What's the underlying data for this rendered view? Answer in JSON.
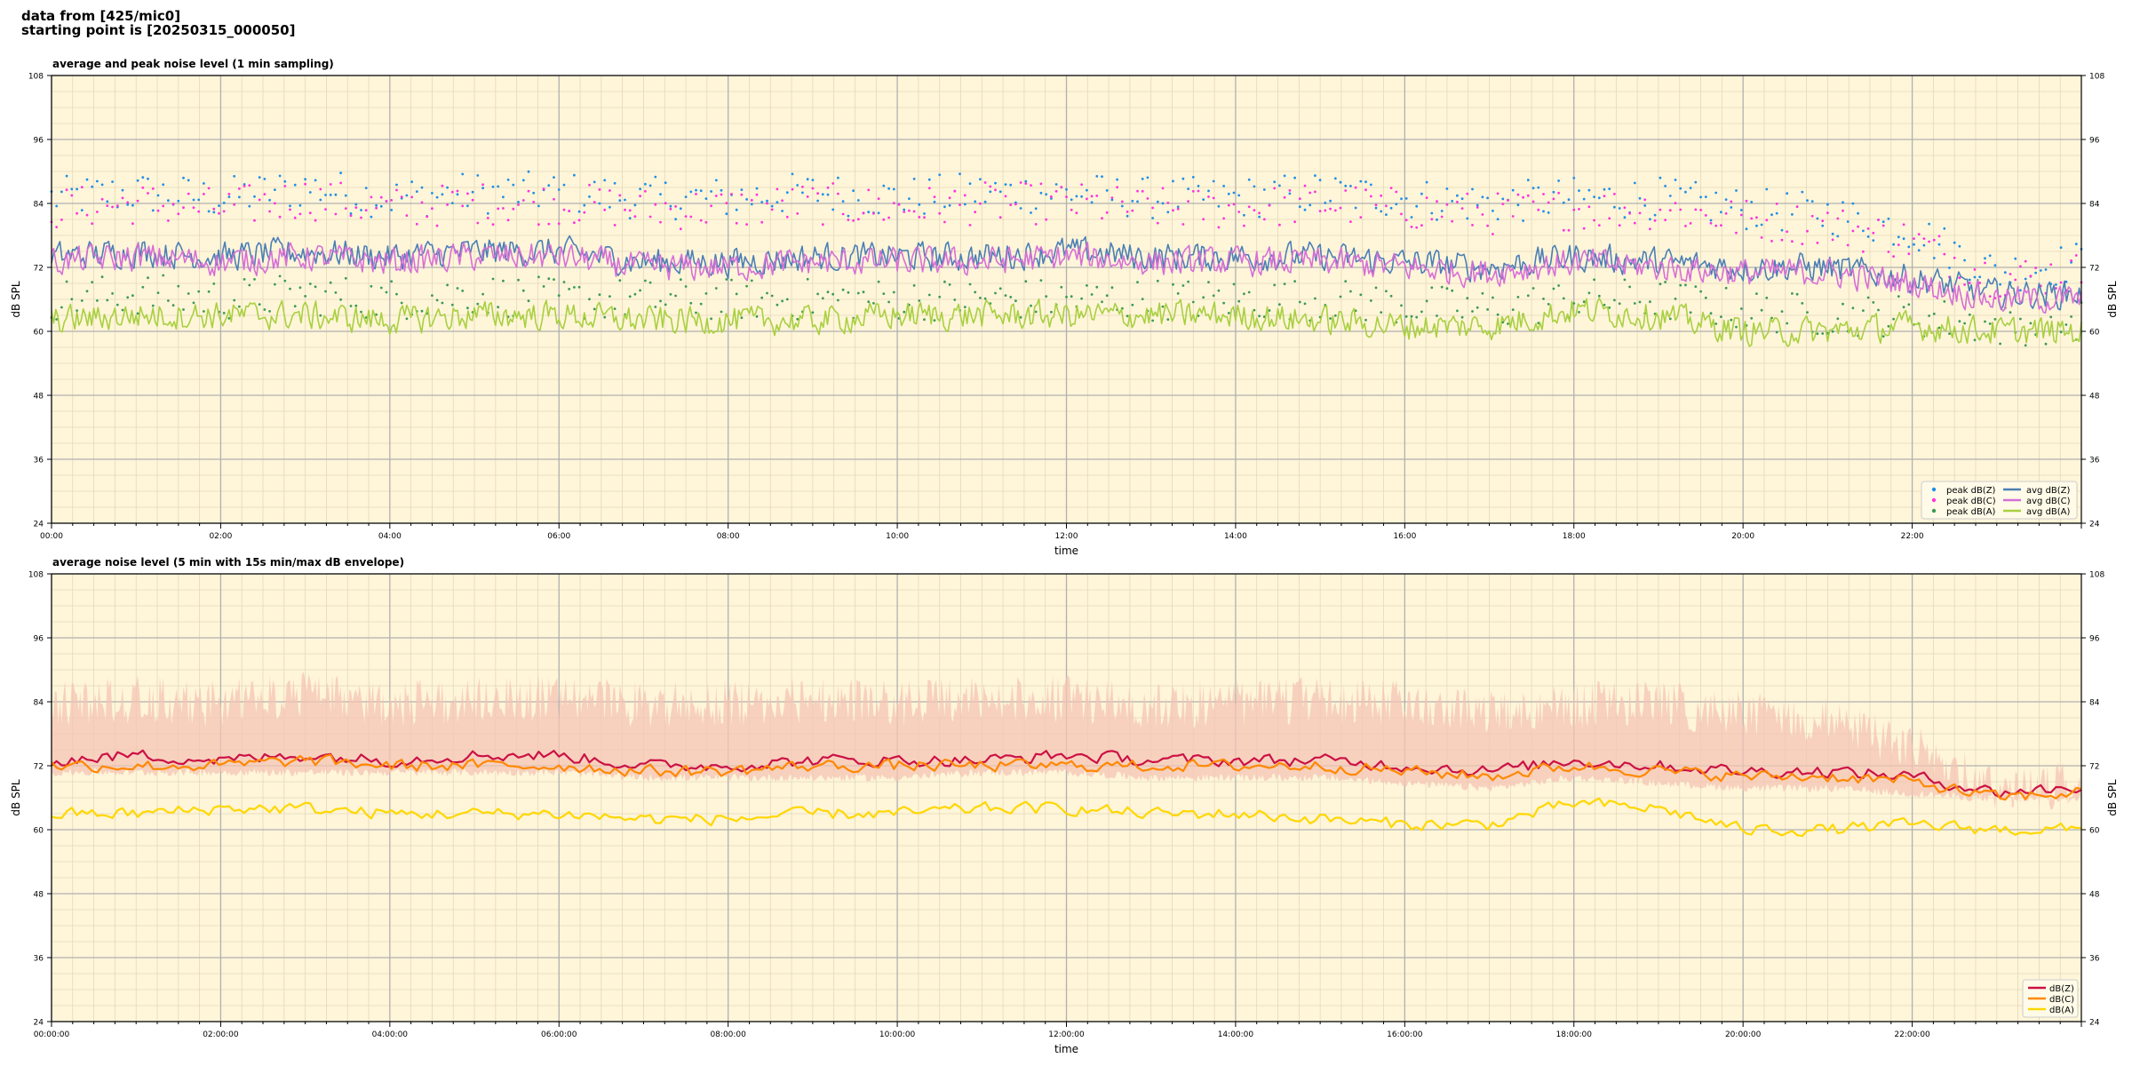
{
  "header": {
    "line1": "data from [425/mic0]",
    "line2": "starting point is [20250315_000050]"
  },
  "colors": {
    "plot_bg": "#fff5d9",
    "grid_major": "#b0b0b0",
    "grid_minor": "#e3d9b8",
    "peak_z": "#1f8fe6",
    "peak_c": "#ff33dd",
    "peak_a": "#3a9a55",
    "avg_z": "#4a7fb5",
    "avg_c": "#d66fd6",
    "avg_a": "#a8d040",
    "lower_z": "#cc1144",
    "lower_c": "#ff8800",
    "lower_a": "#ffd700",
    "envelope": "#f4c4b4"
  },
  "chart_data": [
    {
      "type": "line",
      "title": "average and peak noise level (1 min sampling)",
      "xlabel": "time",
      "ylabel": "dB SPL",
      "ylim": [
        24,
        108
      ],
      "y_ticks": [
        "24",
        "36",
        "48",
        "60",
        "72",
        "84",
        "96",
        "108"
      ],
      "x_range_hours": [
        0,
        24
      ],
      "x_ticks": [
        "00:00",
        "02:00",
        "04:00",
        "06:00",
        "08:00",
        "10:00",
        "12:00",
        "14:00",
        "16:00",
        "18:00",
        "20:00",
        "22:00"
      ],
      "grid": true,
      "legend_position": "lower-right",
      "series": [
        {
          "name": "peak dB(Z)",
          "kind": "points",
          "key": "peak_z",
          "x": [
            0,
            1,
            2,
            3,
            4,
            5,
            6,
            7,
            8,
            9,
            10,
            11,
            12,
            13,
            14,
            15,
            16,
            17,
            18,
            19,
            20,
            21,
            22,
            23,
            24
          ],
          "y": [
            85,
            86,
            85,
            87,
            85,
            86,
            86,
            85,
            85,
            86,
            85,
            86,
            86,
            85,
            85,
            86,
            85,
            84,
            85,
            85,
            83,
            82,
            79,
            71,
            73
          ]
        },
        {
          "name": "peak dB(C)",
          "kind": "points",
          "key": "peak_c",
          "x": [
            0,
            1,
            2,
            3,
            4,
            5,
            6,
            7,
            8,
            9,
            10,
            11,
            12,
            13,
            14,
            15,
            16,
            17,
            18,
            19,
            20,
            21,
            22,
            23,
            24
          ],
          "y": [
            83,
            84,
            83,
            85,
            83,
            84,
            84,
            83,
            83,
            84,
            83,
            84,
            84,
            83,
            83,
            84,
            83,
            82,
            83,
            83,
            81,
            80,
            77,
            70,
            71
          ]
        },
        {
          "name": "peak dB(A)",
          "kind": "points",
          "key": "peak_a",
          "x": [
            0,
            1,
            2,
            3,
            4,
            5,
            6,
            7,
            8,
            9,
            10,
            11,
            12,
            13,
            14,
            15,
            16,
            17,
            18,
            19,
            20,
            21,
            22,
            23,
            24
          ],
          "y": [
            66,
            67,
            66,
            67,
            66,
            67,
            66,
            66,
            66,
            66,
            66,
            66,
            66,
            66,
            66,
            66,
            65,
            64,
            66,
            66,
            64,
            63,
            63,
            61,
            62
          ]
        },
        {
          "name": "avg dB(Z)",
          "kind": "line",
          "key": "avg_z",
          "x": [
            0,
            1,
            2,
            3,
            4,
            5,
            6,
            7,
            8,
            9,
            10,
            11,
            12,
            13,
            14,
            15,
            16,
            17,
            18,
            19,
            20,
            21,
            22,
            23,
            24
          ],
          "y": [
            74,
            75,
            74,
            75,
            74,
            75,
            75,
            73,
            73,
            74,
            74,
            74,
            75,
            74,
            74,
            74,
            73,
            72,
            74,
            73,
            72,
            72,
            70,
            67,
            67
          ]
        },
        {
          "name": "avg dB(C)",
          "kind": "line",
          "key": "avg_c",
          "x": [
            0,
            1,
            2,
            3,
            4,
            5,
            6,
            7,
            8,
            9,
            10,
            11,
            12,
            13,
            14,
            15,
            16,
            17,
            18,
            19,
            20,
            21,
            22,
            23,
            24
          ],
          "y": [
            73,
            74,
            73,
            74,
            73,
            74,
            74,
            72,
            72,
            73,
            73,
            73,
            74,
            73,
            73,
            73,
            72,
            71,
            73,
            72,
            71,
            71,
            69,
            66,
            66
          ]
        },
        {
          "name": "avg dB(A)",
          "kind": "line",
          "key": "avg_a",
          "x": [
            0,
            1,
            2,
            3,
            4,
            5,
            6,
            7,
            8,
            9,
            10,
            11,
            12,
            13,
            14,
            15,
            16,
            17,
            18,
            19,
            20,
            21,
            22,
            23,
            24
          ],
          "y": [
            62,
            63,
            63,
            63,
            62,
            63,
            63,
            62,
            62,
            62,
            63,
            63,
            63,
            63,
            63,
            62,
            61,
            61,
            64,
            63,
            60,
            60,
            61,
            60,
            60
          ]
        }
      ]
    },
    {
      "type": "line",
      "title": "average noise level (5 min with 15s min/max dB envelope)",
      "xlabel": "time",
      "ylabel": "dB SPL",
      "ylim": [
        24,
        108
      ],
      "y_ticks": [
        "24",
        "36",
        "48",
        "60",
        "72",
        "84",
        "96",
        "108"
      ],
      "x_range_hours": [
        0,
        24
      ],
      "x_ticks": [
        "00:00:00",
        "02:00:00",
        "04:00:00",
        "06:00:00",
        "08:00:00",
        "10:00:00",
        "12:00:00",
        "14:00:00",
        "16:00:00",
        "18:00:00",
        "20:00:00",
        "22:00:00"
      ],
      "grid": true,
      "legend_position": "lower-right",
      "envelope": {
        "x": [
          0,
          1,
          2,
          3,
          4,
          5,
          6,
          7,
          8,
          9,
          10,
          11,
          12,
          13,
          14,
          15,
          16,
          17,
          18,
          19,
          20,
          21,
          22,
          23,
          24
        ],
        "max": [
          88,
          89,
          88,
          90,
          88,
          89,
          89,
          88,
          88,
          89,
          88,
          89,
          89,
          88,
          88,
          89,
          88,
          87,
          88,
          88,
          86,
          85,
          80,
          72,
          73
        ],
        "min": [
          70,
          70,
          70,
          70,
          70,
          70,
          70,
          69,
          69,
          69,
          69,
          70,
          70,
          69,
          69,
          69,
          68,
          67,
          69,
          68,
          67,
          67,
          66,
          65,
          65
        ]
      },
      "series": [
        {
          "name": "dB(Z)",
          "kind": "line",
          "key": "lower_z",
          "x": [
            0,
            1,
            2,
            3,
            4,
            5,
            6,
            7,
            8,
            9,
            10,
            11,
            12,
            13,
            14,
            15,
            16,
            17,
            18,
            19,
            20,
            21,
            22,
            23,
            24
          ],
          "y": [
            73,
            74,
            73,
            74,
            73,
            74,
            74,
            72,
            72,
            73,
            73,
            73,
            74,
            73,
            73,
            73,
            72,
            71,
            73,
            72,
            71,
            71,
            70,
            67,
            68
          ]
        },
        {
          "name": "dB(C)",
          "kind": "line",
          "key": "lower_c",
          "x": [
            0,
            1,
            2,
            3,
            4,
            5,
            6,
            7,
            8,
            9,
            10,
            11,
            12,
            13,
            14,
            15,
            16,
            17,
            18,
            19,
            20,
            21,
            22,
            23,
            24
          ],
          "y": [
            72,
            72,
            72,
            73,
            72,
            72,
            72,
            71,
            71,
            72,
            72,
            72,
            72,
            72,
            72,
            72,
            71,
            70,
            72,
            71,
            70,
            70,
            69,
            66,
            67
          ]
        },
        {
          "name": "dB(A)",
          "kind": "line",
          "key": "lower_a",
          "x": [
            0,
            1,
            2,
            3,
            4,
            5,
            6,
            7,
            8,
            9,
            10,
            11,
            12,
            13,
            14,
            15,
            16,
            17,
            18,
            19,
            20,
            21,
            22,
            23,
            24
          ],
          "y": [
            63,
            63,
            64,
            64,
            63,
            63,
            63,
            62,
            62,
            63,
            63,
            64,
            64,
            63,
            63,
            62,
            61,
            61,
            65,
            64,
            60,
            60,
            61,
            60,
            60
          ]
        }
      ]
    }
  ]
}
